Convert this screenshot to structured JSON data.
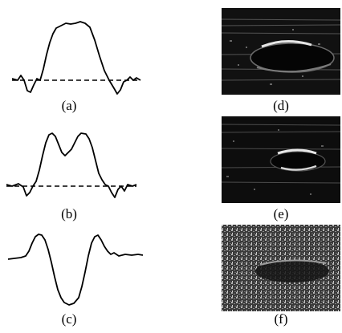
{
  "panels": [
    {
      "id": "a",
      "label": "(a)",
      "kind": "waveform"
    },
    {
      "id": "b",
      "label": "(b)",
      "kind": "waveform"
    },
    {
      "id": "c",
      "label": "(c)",
      "kind": "waveform"
    },
    {
      "id": "d",
      "label": "(d)",
      "kind": "ultrasound-image"
    },
    {
      "id": "e",
      "label": "(e)",
      "kind": "ultrasound-image"
    },
    {
      "id": "f",
      "label": "(f)",
      "kind": "ultrasound-image"
    }
  ],
  "colors": {
    "ink": "#000000",
    "image_background": "#0e0e0e",
    "speckle": "#9a9a9a",
    "echo_highlight": "#e6e6e6"
  }
}
